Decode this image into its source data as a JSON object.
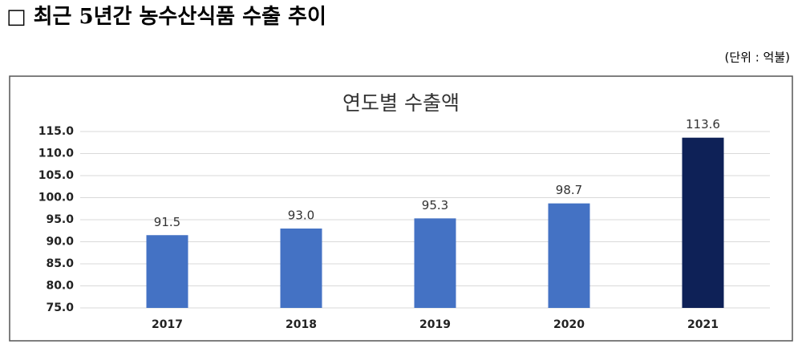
{
  "header": {
    "title": "□ 최근 5년간 농수산식품 수출 추이",
    "unit": "(단위 : 억불)"
  },
  "chart_data": {
    "type": "bar",
    "title": "연도별 수출액",
    "categories": [
      "2017",
      "2018",
      "2019",
      "2020",
      "2021"
    ],
    "values": [
      91.5,
      93.0,
      95.3,
      98.7,
      113.6
    ],
    "value_labels": [
      "91.5",
      "93.0",
      "95.3",
      "98.7",
      "113.6"
    ],
    "colors": [
      "#4472c4",
      "#4472c4",
      "#4472c4",
      "#4472c4",
      "#0e2157"
    ],
    "ylim": [
      75,
      115
    ],
    "yticks": [
      {
        "value": 75,
        "label": "75.0"
      },
      {
        "value": 80,
        "label": "80.0"
      },
      {
        "value": 85,
        "label": "85.0"
      },
      {
        "value": 90,
        "label": "90.0"
      },
      {
        "value": 95,
        "label": "95.0"
      },
      {
        "value": 100,
        "label": "100.0"
      },
      {
        "value": 105,
        "label": "105.0"
      },
      {
        "value": 110,
        "label": "110.0"
      },
      {
        "value": 115,
        "label": "115.0"
      }
    ],
    "grid": true
  }
}
